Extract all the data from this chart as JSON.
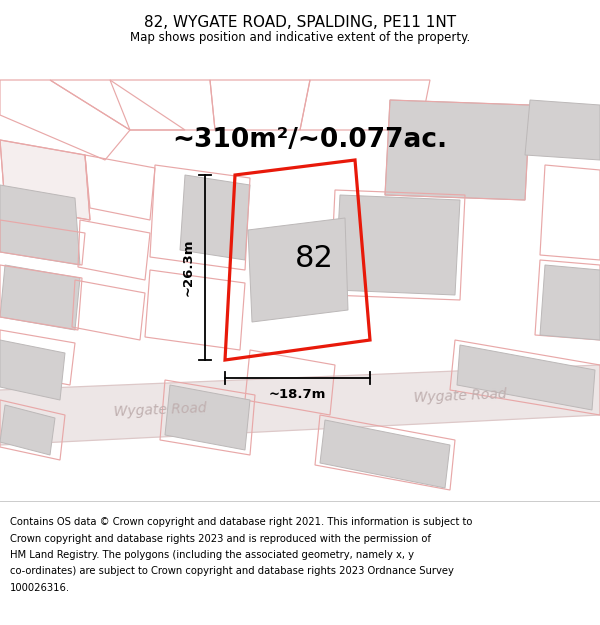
{
  "title": "82, WYGATE ROAD, SPALDING, PE11 1NT",
  "subtitle": "Map shows position and indicative extent of the property.",
  "footer_lines": [
    "Contains OS data © Crown copyright and database right 2021. This information is subject to",
    "Crown copyright and database rights 2023 and is reproduced with the permission of",
    "HM Land Registry. The polygons (including the associated geometry, namely x, y",
    "co-ordinates) are subject to Crown copyright and database rights 2023 Ordnance Survey",
    "100026316."
  ],
  "area_label": "~310m²/~0.077ac.",
  "house_number": "82",
  "width_label": "~18.7m",
  "height_label": "~26.3m",
  "road_label_left": "Wygate Road",
  "road_label_right": "Wygate Road",
  "map_bg": "#f2efef",
  "white": "#ffffff",
  "plot_edge_color": "#e8190a",
  "building_fill": "#d3d0d0",
  "building_edge": "#bcb8b8",
  "road_fill": "#ede6e6",
  "road_edge": "#ddc8c8",
  "pink_edge": "#e8a8a8",
  "pink_fill": "#f5eeee",
  "fig_width": 6.0,
  "fig_height": 6.25,
  "dpi": 100
}
